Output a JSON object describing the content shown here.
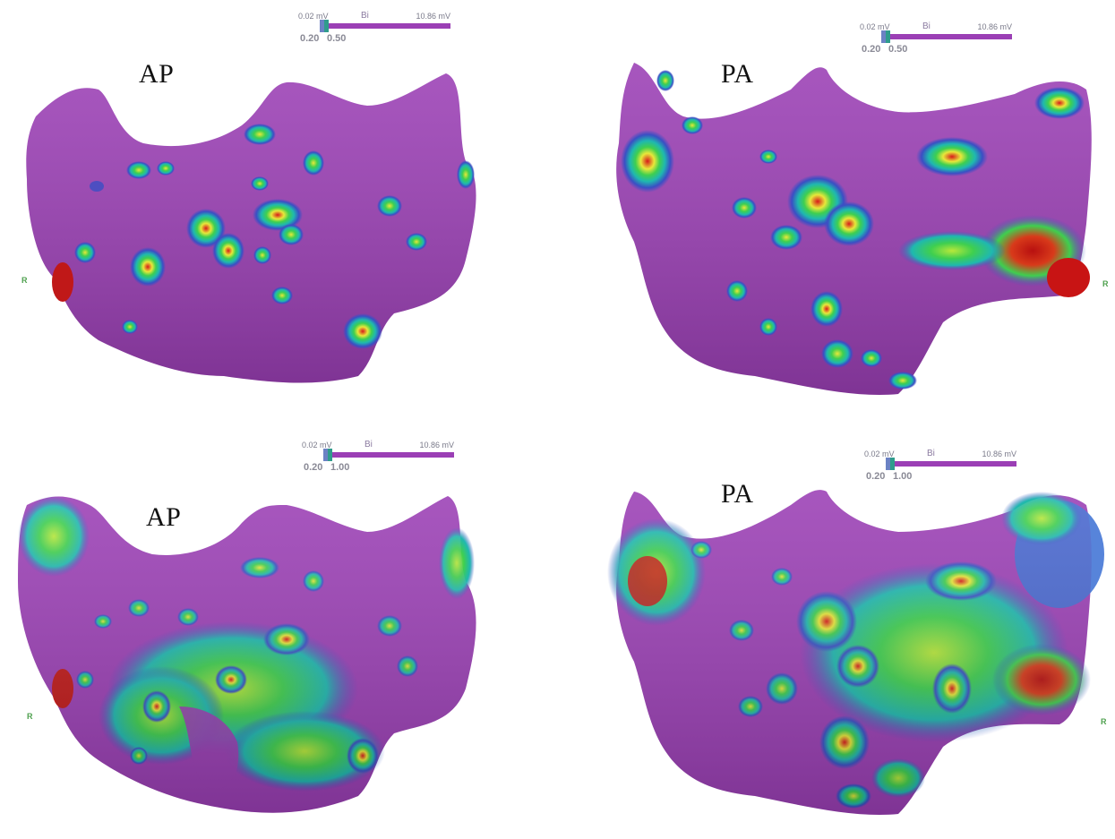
{
  "panels": [
    {
      "view": "AP",
      "scale": {
        "min": "0.02 mV",
        "mode": "Bi",
        "max": "10.86 mV",
        "low": "0.20",
        "high": "0.50"
      },
      "axis_marker": "R"
    },
    {
      "view": "PA",
      "scale": {
        "min": "0.02 mV",
        "mode": "Bi",
        "max": "10.86 mV",
        "low": "0.20",
        "high": "0.50"
      },
      "axis_marker": "R"
    },
    {
      "view": "AP",
      "scale": {
        "min": "0.02 mV",
        "mode": "Bi",
        "max": "10.86 mV",
        "low": "0.20",
        "high": "1.00"
      },
      "axis_marker": "R"
    },
    {
      "view": "PA",
      "scale": {
        "min": "0.02 mV",
        "mode": "Bi",
        "max": "10.86 mV",
        "low": "0.20",
        "high": "1.00"
      },
      "axis_marker": "R"
    }
  ],
  "colors": {
    "healthy": "#9b3fb5",
    "border": "#3a4fc4",
    "mid_cyan": "#1fb8b0",
    "mid_green": "#3fcf4f",
    "yellow": "#e8e83a",
    "scar": "#d81a1a"
  }
}
